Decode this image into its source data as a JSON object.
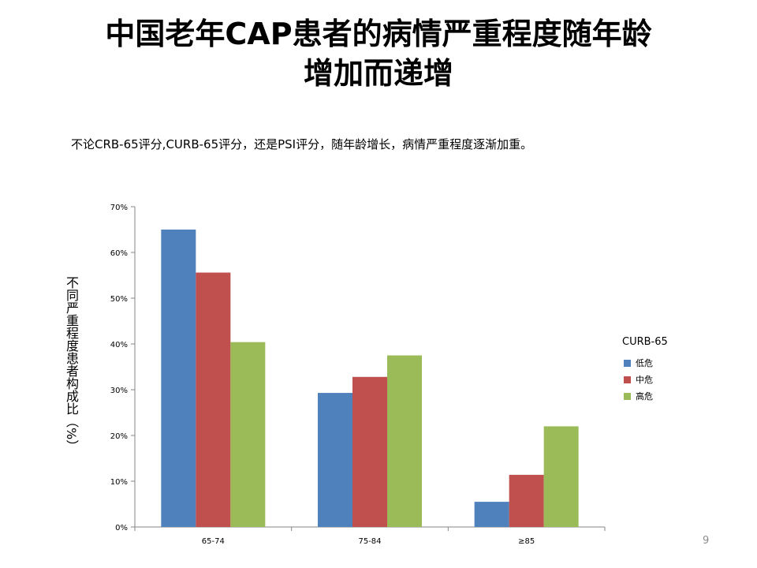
{
  "slide": {
    "title_line1": "中国老年CAP患者的病情严重程度随年龄",
    "title_line2": "增加而递增",
    "subtitle": "不论CRB-65评分,CURB-65评分，还是PSI评分，随年龄增长，病情严重程度逐渐加重。",
    "page_number": "9"
  },
  "chart_data": {
    "type": "bar",
    "title": "",
    "xlabel": "",
    "ylabel": "不同严重程度患者构成比（%）",
    "categories": [
      "65-74",
      "75-84",
      "≥85"
    ],
    "ylim": [
      0,
      70
    ],
    "yticks": [
      "0%",
      "10%",
      "20%",
      "30%",
      "40%",
      "50%",
      "60%",
      "70%"
    ],
    "legend_title": "CURB-65",
    "legend_position": "right",
    "grid": false,
    "series": [
      {
        "name": "低危",
        "color": "#4F81BD",
        "values": [
          65.0,
          29.3,
          5.5
        ]
      },
      {
        "name": "中危",
        "color": "#C0504D",
        "values": [
          55.6,
          32.8,
          11.4
        ]
      },
      {
        "name": "高危",
        "color": "#9BBB59",
        "values": [
          40.4,
          37.5,
          22.0
        ]
      }
    ]
  }
}
